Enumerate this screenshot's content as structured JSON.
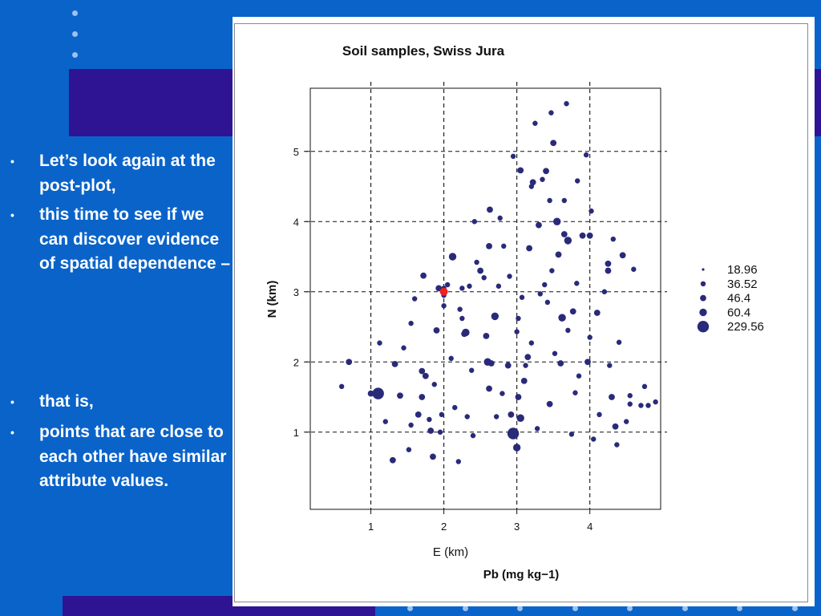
{
  "slide": {
    "bullets": [
      "Let’s look again at the post-plot,",
      "this time to see if we can discover evidence of spatial dependence –",
      "that is,",
      "points that are close to each other have similar attribute values."
    ],
    "bullet_marker": "•"
  },
  "colors": {
    "background": "#0a63c9",
    "band": "#2e1493",
    "point": "#2a2a7a",
    "highlight": "#ee2222"
  },
  "chart_data": {
    "type": "scatter",
    "title": "Soil samples, Swiss Jura",
    "xlabel": "E (km)",
    "ylabel": "N (km)",
    "caption": "Pb (mg kg−1)",
    "xlim": [
      0.17,
      4.97
    ],
    "ylim": [
      -0.1,
      5.9
    ],
    "xticks": [
      1,
      2,
      3,
      4
    ],
    "yticks": [
      1,
      2,
      3,
      4,
      5
    ],
    "grid": "dashed",
    "legend_position": "right",
    "legend": [
      {
        "label": "18.96",
        "size": 1
      },
      {
        "label": "36.52",
        "size": 2
      },
      {
        "label": "46.4",
        "size": 3
      },
      {
        "label": "60.4",
        "size": 4
      },
      {
        "label": "229.56",
        "size": 5
      }
    ],
    "highlight_point": {
      "x": 2.0,
      "y": 3.0
    },
    "points": [
      [
        0.6,
        1.65,
        2
      ],
      [
        0.7,
        2.0,
        3
      ],
      [
        1.0,
        1.55,
        3
      ],
      [
        1.1,
        1.55,
        5
      ],
      [
        1.12,
        2.27,
        2
      ],
      [
        1.2,
        1.15,
        2
      ],
      [
        1.3,
        0.6,
        3
      ],
      [
        1.33,
        1.97,
        3
      ],
      [
        1.4,
        1.52,
        3
      ],
      [
        1.45,
        2.2,
        2
      ],
      [
        1.52,
        0.75,
        2
      ],
      [
        1.55,
        1.1,
        2
      ],
      [
        1.55,
        2.55,
        2
      ],
      [
        1.6,
        2.9,
        2
      ],
      [
        1.65,
        1.25,
        3
      ],
      [
        1.7,
        1.5,
        3
      ],
      [
        1.7,
        1.87,
        3
      ],
      [
        1.72,
        3.23,
        3
      ],
      [
        1.75,
        1.8,
        3
      ],
      [
        1.8,
        1.18,
        2
      ],
      [
        1.82,
        1.02,
        3
      ],
      [
        1.85,
        0.65,
        3
      ],
      [
        1.87,
        1.68,
        2
      ],
      [
        1.9,
        2.45,
        3
      ],
      [
        1.93,
        3.05,
        3
      ],
      [
        1.95,
        1.0,
        2
      ],
      [
        1.97,
        1.25,
        2
      ],
      [
        2.0,
        3.05,
        2
      ],
      [
        2.0,
        2.95,
        2
      ],
      [
        2.0,
        2.8,
        2
      ],
      [
        2.05,
        3.1,
        2
      ],
      [
        2.1,
        2.05,
        2
      ],
      [
        2.12,
        3.5,
        4
      ],
      [
        2.15,
        1.35,
        2
      ],
      [
        2.2,
        0.58,
        2
      ],
      [
        2.22,
        2.75,
        2
      ],
      [
        2.25,
        3.05,
        2
      ],
      [
        2.25,
        2.62,
        2
      ],
      [
        2.28,
        2.4,
        3
      ],
      [
        2.3,
        2.42,
        4
      ],
      [
        2.32,
        1.22,
        2
      ],
      [
        2.35,
        3.08,
        2
      ],
      [
        2.38,
        1.88,
        2
      ],
      [
        2.4,
        0.95,
        2
      ],
      [
        2.42,
        4.0,
        2
      ],
      [
        2.45,
        3.42,
        2
      ],
      [
        2.5,
        3.3,
        3
      ],
      [
        2.55,
        3.2,
        2
      ],
      [
        2.58,
        2.37,
        3
      ],
      [
        2.6,
        2.0,
        4
      ],
      [
        2.62,
        1.62,
        3
      ],
      [
        2.62,
        3.65,
        3
      ],
      [
        2.63,
        4.17,
        3
      ],
      [
        2.65,
        1.98,
        3
      ],
      [
        2.7,
        2.65,
        4
      ],
      [
        2.72,
        1.22,
        2
      ],
      [
        2.75,
        3.08,
        2
      ],
      [
        2.77,
        4.05,
        2
      ],
      [
        2.8,
        1.55,
        2
      ],
      [
        2.82,
        3.65,
        2
      ],
      [
        2.88,
        1.95,
        3
      ],
      [
        2.9,
        3.22,
        2
      ],
      [
        2.92,
        1.25,
        3
      ],
      [
        2.95,
        0.98,
        5
      ],
      [
        2.95,
        4.93,
        2
      ],
      [
        3.0,
        0.78,
        4
      ],
      [
        3.0,
        2.43,
        2
      ],
      [
        3.02,
        2.62,
        2
      ],
      [
        3.02,
        1.5,
        3
      ],
      [
        3.05,
        1.2,
        4
      ],
      [
        3.05,
        4.73,
        3
      ],
      [
        3.07,
        2.92,
        2
      ],
      [
        3.1,
        1.73,
        3
      ],
      [
        3.12,
        1.95,
        2
      ],
      [
        3.15,
        2.07,
        3
      ],
      [
        3.17,
        3.62,
        3
      ],
      [
        3.2,
        2.27,
        2
      ],
      [
        3.2,
        4.5,
        2
      ],
      [
        3.22,
        4.56,
        3
      ],
      [
        3.25,
        5.4,
        2
      ],
      [
        3.28,
        1.05,
        2
      ],
      [
        3.3,
        3.95,
        3
      ],
      [
        3.32,
        2.97,
        2
      ],
      [
        3.35,
        4.6,
        2
      ],
      [
        3.38,
        3.1,
        2
      ],
      [
        3.4,
        4.72,
        3
      ],
      [
        3.42,
        2.85,
        2
      ],
      [
        3.45,
        1.4,
        3
      ],
      [
        3.45,
        4.3,
        2
      ],
      [
        3.47,
        5.55,
        2
      ],
      [
        3.48,
        3.3,
        2
      ],
      [
        3.5,
        5.12,
        3
      ],
      [
        3.52,
        2.12,
        2
      ],
      [
        3.55,
        4.0,
        4
      ],
      [
        3.57,
        3.53,
        3
      ],
      [
        3.6,
        1.98,
        3
      ],
      [
        3.62,
        2.63,
        4
      ],
      [
        3.65,
        4.3,
        2
      ],
      [
        3.65,
        3.82,
        3
      ],
      [
        3.68,
        5.68,
        2
      ],
      [
        3.7,
        3.73,
        4
      ],
      [
        3.7,
        2.45,
        2
      ],
      [
        3.75,
        0.97,
        2
      ],
      [
        3.77,
        2.72,
        3
      ],
      [
        3.8,
        1.56,
        2
      ],
      [
        3.82,
        3.12,
        2
      ],
      [
        3.83,
        4.58,
        2
      ],
      [
        3.85,
        1.8,
        2
      ],
      [
        3.9,
        3.8,
        3
      ],
      [
        3.95,
        4.95,
        2
      ],
      [
        3.97,
        2.0,
        3
      ],
      [
        4.0,
        2.35,
        2
      ],
      [
        4.0,
        3.8,
        3
      ],
      [
        4.02,
        4.15,
        2
      ],
      [
        4.05,
        0.9,
        2
      ],
      [
        4.1,
        2.7,
        3
      ],
      [
        4.13,
        1.25,
        2
      ],
      [
        4.2,
        3.0,
        2
      ],
      [
        4.25,
        3.3,
        3
      ],
      [
        4.25,
        3.4,
        3
      ],
      [
        4.27,
        1.95,
        2
      ],
      [
        4.3,
        1.5,
        3
      ],
      [
        4.32,
        3.75,
        2
      ],
      [
        4.35,
        1.08,
        3
      ],
      [
        4.37,
        0.82,
        2
      ],
      [
        4.4,
        2.28,
        2
      ],
      [
        4.45,
        3.52,
        3
      ],
      [
        4.5,
        1.15,
        2
      ],
      [
        4.55,
        1.4,
        2
      ],
      [
        4.55,
        1.52,
        2
      ],
      [
        4.6,
        3.32,
        2
      ],
      [
        4.7,
        1.38,
        2
      ],
      [
        4.75,
        1.65,
        2
      ],
      [
        4.8,
        1.38,
        2
      ],
      [
        4.9,
        1.43,
        2
      ]
    ]
  }
}
